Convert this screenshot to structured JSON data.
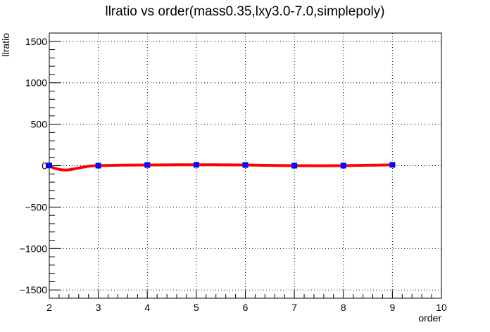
{
  "chart_data": {
    "type": "line",
    "title": "llratio vs order(mass0.35,lxy3.0-7.0,simplepoly)",
    "xlabel": "order",
    "ylabel": "llratio",
    "xlim": [
      2,
      10
    ],
    "ylim": [
      -1600,
      1600
    ],
    "x_ticks": [
      2,
      3,
      4,
      5,
      6,
      7,
      8,
      9,
      10
    ],
    "y_ticks": [
      -1500,
      -1000,
      -500,
      0,
      500,
      1000,
      1500
    ],
    "x_tick_labels": [
      "2",
      "3",
      "4",
      "5",
      "6",
      "7",
      "8",
      "9",
      "10"
    ],
    "y_tick_labels": [
      "−1500",
      "−1000",
      "−500",
      "0",
      "500",
      "1000",
      "1500"
    ],
    "grid": true,
    "series": [
      {
        "x": [
          2,
          3,
          4,
          5,
          6,
          7,
          8,
          9
        ],
        "values": [
          2,
          0,
          8,
          10,
          8,
          0,
          0,
          10
        ],
        "marker_color": "#0000ff",
        "line_color": "#ff0000",
        "marker": "square"
      }
    ],
    "curve": {
      "x": [
        2.0,
        2.1,
        2.2,
        2.3,
        2.4,
        2.5,
        2.6,
        2.7,
        2.8,
        2.9,
        3.0,
        3.5,
        4.0,
        4.5,
        5.0,
        5.5,
        6.0,
        6.5,
        7.0,
        7.5,
        8.0,
        8.5,
        9.0
      ],
      "y": [
        2,
        -30,
        -45,
        -52,
        -50,
        -40,
        -28,
        -17,
        -8,
        -2,
        0,
        6,
        8,
        10,
        10,
        10,
        8,
        3,
        0,
        -1,
        0,
        5,
        10
      ],
      "color": "#ff0000"
    }
  }
}
